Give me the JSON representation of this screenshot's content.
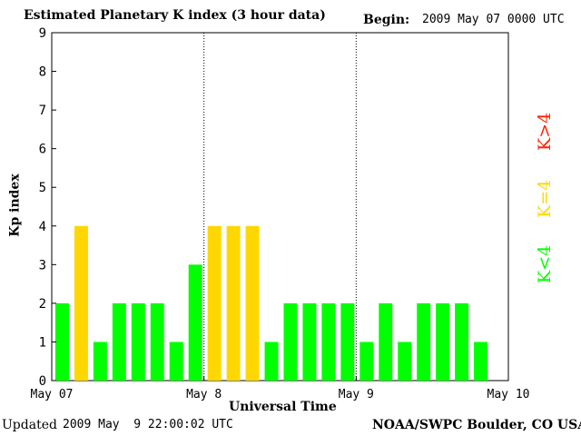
{
  "header": {
    "title": "Estimated Planetary K index (3 hour data)",
    "begin_label": "Begin:",
    "begin_value": "2009 May 07 0000 UTC"
  },
  "footer": {
    "updated_label": "Updated",
    "updated_value": "2009 May  9 22:00:02 UTC",
    "source": "NOAA/SWPC Boulder, CO USA"
  },
  "legend": [
    {
      "label": "K<4",
      "color": "#00ff00"
    },
    {
      "label": "K=4",
      "color": "#ffd700"
    },
    {
      "label": "K>4",
      "color": "#ff2200"
    }
  ],
  "chart_data": {
    "type": "bar",
    "title": "Estimated Planetary K index (3 hour data)",
    "xlabel": "Universal Time",
    "ylabel": "Kp index",
    "ylim": [
      0,
      9
    ],
    "yticks": [
      0,
      1,
      2,
      3,
      4,
      5,
      6,
      7,
      8,
      9
    ],
    "x_tick_labels": [
      "May 07",
      "May 8",
      "May 9",
      "May 10"
    ],
    "day_separators": [
      "May 8",
      "May 9"
    ],
    "interval_hours": 3,
    "values": [
      2,
      4,
      1,
      2,
      2,
      2,
      1,
      3,
      4,
      4,
      4,
      1,
      2,
      2,
      2,
      2,
      1,
      2,
      1,
      2,
      2,
      2,
      1
    ],
    "color_rule": {
      "below_4": "#00ff00",
      "equal_4": "#ffd700",
      "above_4": "#ff2200"
    }
  }
}
